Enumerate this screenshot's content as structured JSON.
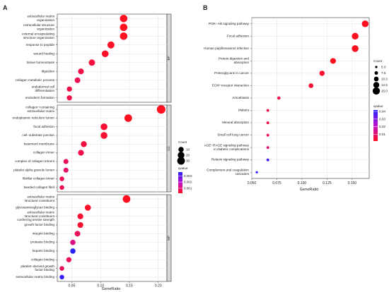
{
  "chart_data": [
    {
      "type": "scatter",
      "panel": "A",
      "xlabel": "GeneRatio",
      "xticks": [
        0.05,
        0.1,
        0.15,
        0.2
      ],
      "xlim": [
        0.025,
        0.215
      ],
      "facets": [
        {
          "name": "BP",
          "rows": [
            {
              "term": "extracellular matrix organization",
              "lines": [
                "extracellular matrix",
                "organization"
              ],
              "x": 0.14,
              "count": 28,
              "p": 0.0002
            },
            {
              "term": "extracellular structure organization",
              "lines": [
                "extracellular structure",
                "organization"
              ],
              "x": 0.14,
              "count": 28,
              "p": 0.0002
            },
            {
              "term": "external encapsulating structure organization",
              "lines": [
                "external encapsulating",
                "structure organization"
              ],
              "x": 0.14,
              "count": 28,
              "p": 0.0002
            },
            {
              "term": "response to peptide",
              "lines": [
                "response to peptide"
              ],
              "x": 0.118,
              "count": 23,
              "p": 0.0003
            },
            {
              "term": "wound healing",
              "lines": [
                "wound healing"
              ],
              "x": 0.108,
              "count": 21,
              "p": 0.0003
            },
            {
              "term": "tissue homeostasis",
              "lines": [
                "tissue homeostasis"
              ],
              "x": 0.085,
              "count": 17,
              "p": 0.0005
            },
            {
              "term": "digestion",
              "lines": [
                "digestion"
              ],
              "x": 0.066,
              "count": 13,
              "p": 0.0006
            },
            {
              "term": "collagen metabolic process",
              "lines": [
                "collagen metabolic process"
              ],
              "x": 0.06,
              "count": 12,
              "p": 0.0007
            },
            {
              "term": "endodermal cell differentiation",
              "lines": [
                "endodermal cell",
                "differentiation"
              ],
              "x": 0.046,
              "count": 9,
              "p": 0.0006
            },
            {
              "term": "endoderm formation",
              "lines": [
                "endoderm formation"
              ],
              "x": 0.046,
              "count": 9,
              "p": 0.0006
            }
          ]
        },
        {
          "name": "CC",
          "rows": [
            {
              "term": "collagen-containing extracellular matrix",
              "lines": [
                "collagen−containing",
                "extracellular matrix"
              ],
              "x": 0.205,
              "count": 40,
              "p": 0.0001
            },
            {
              "term": "endoplasmic reticulum lumen",
              "lines": [
                "endoplasmic reticulum lumen"
              ],
              "x": 0.148,
              "count": 29,
              "p": 0.0002
            },
            {
              "term": "focal adhesion",
              "lines": [
                "focal adhesion"
              ],
              "x": 0.106,
              "count": 21,
              "p": 0.0004
            },
            {
              "term": "cell-substrate junction",
              "lines": [
                "cell−substrate junction"
              ],
              "x": 0.106,
              "count": 21,
              "p": 0.0004
            },
            {
              "term": "basement membrane",
              "lines": [
                "basement membrane"
              ],
              "x": 0.071,
              "count": 14,
              "p": 0.0005
            },
            {
              "term": "collagen trimer",
              "lines": [
                "collagen trimer"
              ],
              "x": 0.066,
              "count": 13,
              "p": 0.0006
            },
            {
              "term": "complex of collagen trimers",
              "lines": [
                "complex of collagen trimers"
              ],
              "x": 0.04,
              "count": 8,
              "p": 0.0008
            },
            {
              "term": "platelet alpha granule lumen",
              "lines": [
                "platelet alpha granule lumen"
              ],
              "x": 0.04,
              "count": 8,
              "p": 0.0009
            },
            {
              "term": "fibrillar collagen trimer",
              "lines": [
                "fibrillar collagen trimer"
              ],
              "x": 0.033,
              "count": 6,
              "p": 0.0007
            },
            {
              "term": "banded collagen fibril",
              "lines": [
                "banded collagen fibril"
              ],
              "x": 0.033,
              "count": 6,
              "p": 0.0007
            }
          ]
        },
        {
          "name": "MF",
          "rows": [
            {
              "term": "extracellular matrix structural constituent",
              "lines": [
                "extracellular matrix",
                "structural constituent"
              ],
              "x": 0.145,
              "count": 29,
              "p": 0.0002
            },
            {
              "term": "glycosaminoglycan binding",
              "lines": [
                "glycosaminoglycan binding"
              ],
              "x": 0.078,
              "count": 15,
              "p": 0.0003
            },
            {
              "term": "extracellular matrix structural constituent conferring tensile strength",
              "lines": [
                "extracellular matrix",
                "structural constituent",
                "conferring tensile strength"
              ],
              "x": 0.065,
              "count": 13,
              "p": 0.0004
            },
            {
              "term": "growth factor binding",
              "lines": [
                "growth factor binding"
              ],
              "x": 0.065,
              "count": 13,
              "p": 0.0004
            },
            {
              "term": "integrin binding",
              "lines": [
                "integrin binding"
              ],
              "x": 0.06,
              "count": 12,
              "p": 0.0008
            },
            {
              "term": "protease binding",
              "lines": [
                "protease binding"
              ],
              "x": 0.052,
              "count": 10,
              "p": 0.0012
            },
            {
              "term": "heparin binding",
              "lines": [
                "heparin binding"
              ],
              "x": 0.052,
              "count": 10,
              "p": 0.0035
            },
            {
              "term": "collagen binding",
              "lines": [
                "collagen binding"
              ],
              "x": 0.045,
              "count": 9,
              "p": 0.0008
            },
            {
              "term": "platelet-derived growth factor binding",
              "lines": [
                "platelet−derived growth",
                "factor binding"
              ],
              "x": 0.033,
              "count": 6,
              "p": 0.0008
            },
            {
              "term": "extracellular matrix binding",
              "lines": [
                "extracellular matrix binding"
              ],
              "x": 0.033,
              "count": 6,
              "p": 0.0034
            }
          ]
        }
      ],
      "legend": {
        "count_title": "Count",
        "count_values": [
          10,
          20,
          30
        ],
        "color_title": "qvalue",
        "color_ticks": [
          0.003,
          0.002,
          0.001
        ],
        "color_range": [
          0.0002,
          0.0036
        ]
      }
    },
    {
      "type": "scatter",
      "panel": "B",
      "xlabel": "GeneRatio",
      "xticks": [
        0.05,
        0.075,
        0.1,
        0.125,
        0.15
      ],
      "xlim": [
        0.05,
        0.167
      ],
      "rows": [
        {
          "term": "PI3K-Akt signaling pathway",
          "lines": [
            "PI3K−Akt signaling pathway"
          ],
          "x": 0.163,
          "count": 14,
          "q": 0.001
        },
        {
          "term": "Focal adhesion",
          "lines": [
            "Focal adhesion"
          ],
          "x": 0.153,
          "count": 14,
          "q": 0.001
        },
        {
          "term": "Human papillomavirus infection",
          "lines": [
            "Human papillomavirus infection"
          ],
          "x": 0.153,
          "count": 14,
          "q": 0.001
        },
        {
          "term": "Protein digestion and absorption",
          "lines": [
            "Protein digestion and",
            "absorption"
          ],
          "x": 0.131,
          "count": 12,
          "q": 0.001
        },
        {
          "term": "Proteoglycans in cancer",
          "lines": [
            "Proteoglycans in cancer"
          ],
          "x": 0.12,
          "count": 11,
          "q": 0.003
        },
        {
          "term": "ECM-receptor interaction",
          "lines": [
            "ECM−receptor interaction"
          ],
          "x": 0.109,
          "count": 10,
          "q": 0.004
        },
        {
          "term": "Amoebiasis",
          "lines": [
            "Amoebiasis"
          ],
          "x": 0.077,
          "count": 7,
          "q": 0.006
        },
        {
          "term": "Malaria",
          "lines": [
            "Malaria"
          ],
          "x": 0.066,
          "count": 6,
          "q": 0.006
        },
        {
          "term": "Mineral absorption",
          "lines": [
            "Mineral absorption"
          ],
          "x": 0.066,
          "count": 6,
          "q": 0.006
        },
        {
          "term": "Small cell lung cancer",
          "lines": [
            "Small cell lung cancer"
          ],
          "x": 0.066,
          "count": 6,
          "q": 0.008
        },
        {
          "term": "AGE-RAGE signaling pathway in diabetic complications",
          "lines": [
            "AGE−RAGE signaling pathway",
            "in diabetic complications"
          ],
          "x": 0.066,
          "count": 6,
          "q": 0.011
        },
        {
          "term": "Relaxin signaling pathway",
          "lines": [
            "Relaxin signaling pathway"
          ],
          "x": 0.066,
          "count": 6,
          "q": 0.038
        },
        {
          "term": "Complement and coagulation cascades",
          "lines": [
            "Complement and coagulation",
            "cascades"
          ],
          "x": 0.055,
          "count": 5,
          "q": 0.04
        }
      ],
      "legend": {
        "count_title": "Count",
        "count_values": [
          5.0,
          7.5,
          10.0,
          12.5,
          15.0
        ],
        "count_labels": [
          "5.0",
          "7.5",
          "10.0",
          "12.5",
          "15.0"
        ],
        "color_title": "qvalue",
        "color_ticks": [
          0.04,
          0.03,
          0.02,
          0.01
        ],
        "color_range": [
          0.001,
          0.042
        ]
      }
    }
  ]
}
